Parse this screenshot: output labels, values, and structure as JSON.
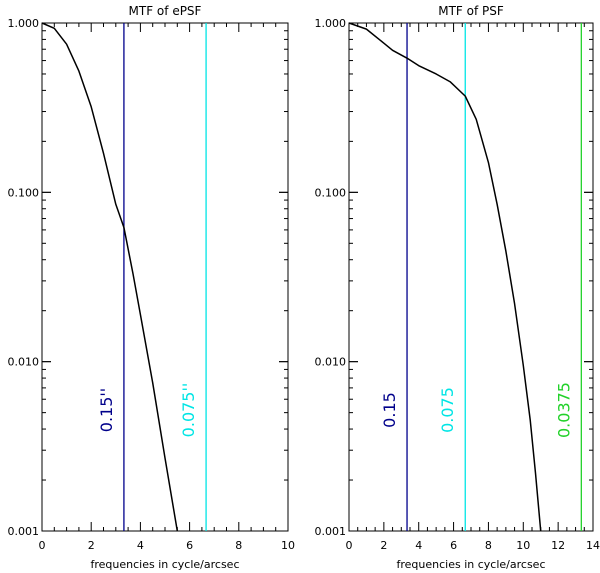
{
  "chart_data": [
    {
      "type": "line",
      "title": "MTF of ePSF",
      "xlabel": "frequencies in cycle/arcsec",
      "ylabel": "",
      "xlim": [
        0,
        10
      ],
      "ylim": [
        0.001,
        1.0
      ],
      "yscale": "log",
      "xticks": [
        0,
        2,
        4,
        6,
        8,
        10
      ],
      "xtick_labels": [
        "0",
        "2",
        "4",
        "6",
        "8",
        "10"
      ],
      "yticks": [
        1.0,
        0.1,
        0.01,
        0.001
      ],
      "ytick_labels": [
        "1.000",
        "0.100",
        "0.010",
        "0.001"
      ],
      "grid": false,
      "series": [
        {
          "color": "#000000",
          "x": [
            0,
            0.5,
            1.0,
            1.5,
            2.0,
            2.5,
            3.0,
            3.33,
            3.7,
            4.0,
            4.5,
            5.0,
            5.5
          ],
          "y": [
            1.0,
            0.93,
            0.75,
            0.52,
            0.32,
            0.17,
            0.085,
            0.062,
            0.033,
            0.019,
            0.0075,
            0.0027,
            0.001
          ]
        }
      ],
      "vlines": [
        {
          "x": 3.33,
          "color": "#00008b",
          "label": "0.15''"
        },
        {
          "x": 6.67,
          "color": "#00e5e5",
          "label": "0.075''"
        }
      ]
    },
    {
      "type": "line",
      "title": "MTF of PSF",
      "xlabel": "frequencies in cycle/arcsec",
      "ylabel": "",
      "xlim": [
        0,
        14
      ],
      "ylim": [
        0.001,
        1.0
      ],
      "yscale": "log",
      "xticks": [
        0,
        2,
        4,
        6,
        8,
        10,
        12,
        14
      ],
      "xtick_labels": [
        "0",
        "2",
        "4",
        "6",
        "8",
        "10",
        "12",
        "14"
      ],
      "yticks": [
        1.0,
        0.1,
        0.01,
        0.001
      ],
      "ytick_labels": [
        "1.000",
        "0.100",
        "0.010",
        "0.001"
      ],
      "grid": false,
      "series": [
        {
          "color": "#000000",
          "x": [
            0,
            1,
            2,
            2.5,
            3.33,
            4,
            5,
            5.8,
            6.67,
            7.3,
            8,
            8.5,
            9,
            9.5,
            10,
            10.4,
            10.7,
            11.0
          ],
          "y": [
            1.0,
            0.92,
            0.76,
            0.69,
            0.62,
            0.56,
            0.5,
            0.45,
            0.37,
            0.27,
            0.15,
            0.085,
            0.045,
            0.022,
            0.0095,
            0.0045,
            0.0022,
            0.001
          ]
        }
      ],
      "vlines": [
        {
          "x": 3.33,
          "color": "#00008b",
          "label": "0.15"
        },
        {
          "x": 6.67,
          "color": "#00e5e5",
          "label": "0.075"
        },
        {
          "x": 13.33,
          "color": "#22d22a",
          "label": "0.0375"
        }
      ]
    }
  ]
}
